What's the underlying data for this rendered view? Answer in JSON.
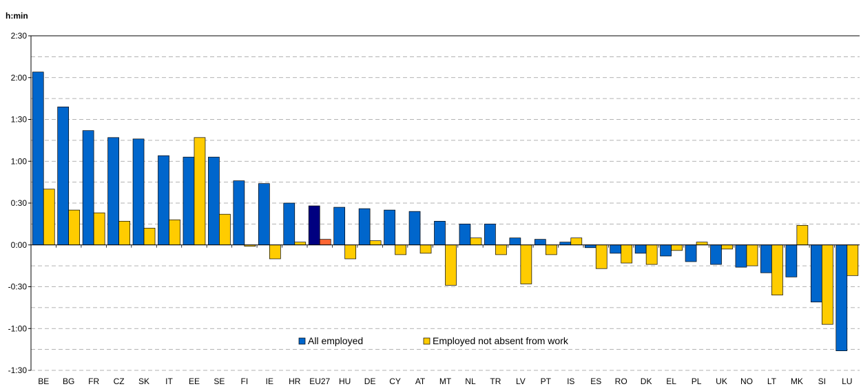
{
  "chart_data": {
    "type": "bar",
    "unit_label": "h:min",
    "categories": [
      "BE",
      "BG",
      "FR",
      "CZ",
      "SK",
      "IT",
      "EE",
      "SE",
      "FI",
      "IE",
      "HR",
      "EU27",
      "HU",
      "DE",
      "CY",
      "AT",
      "MT",
      "NL",
      "TR",
      "LV",
      "PT",
      "IS",
      "ES",
      "RO",
      "DK",
      "EL",
      "PL",
      "UK",
      "NO",
      "LT",
      "MK",
      "SI",
      "LU"
    ],
    "highlight_category": "EU27",
    "series": [
      {
        "name": "All employed",
        "color": "#0066cc",
        "highlight_color": "#000080",
        "values": [
          124,
          99,
          82,
          77,
          76,
          64,
          63,
          63,
          46,
          44,
          30,
          28,
          27,
          26,
          25,
          24,
          17,
          15,
          15,
          5,
          4,
          2,
          -2,
          -6,
          -6,
          -8,
          -12,
          -14,
          -16,
          -20,
          -23,
          -41,
          -76
        ]
      },
      {
        "name": "Employed not absent from work",
        "color": "#ffcc00",
        "highlight_color": "#ff6633",
        "values": [
          40,
          25,
          23,
          17,
          12,
          18,
          77,
          22,
          -1,
          -10,
          2,
          4,
          -10,
          3,
          -7,
          -6,
          -29,
          5,
          -7,
          -28,
          -7,
          5,
          -17,
          -13,
          -14,
          -4,
          2,
          -3,
          -15,
          -36,
          14,
          -57,
          -22
        ]
      }
    ],
    "y_ticks": [
      "2:30",
      "2:00",
      "1:30",
      "1:00",
      "0:30",
      "0:00",
      "-0:30",
      "-1:00",
      "-1:30"
    ],
    "ylim": [
      -90,
      150
    ],
    "grid": true,
    "legend_position": "bottom-center"
  }
}
